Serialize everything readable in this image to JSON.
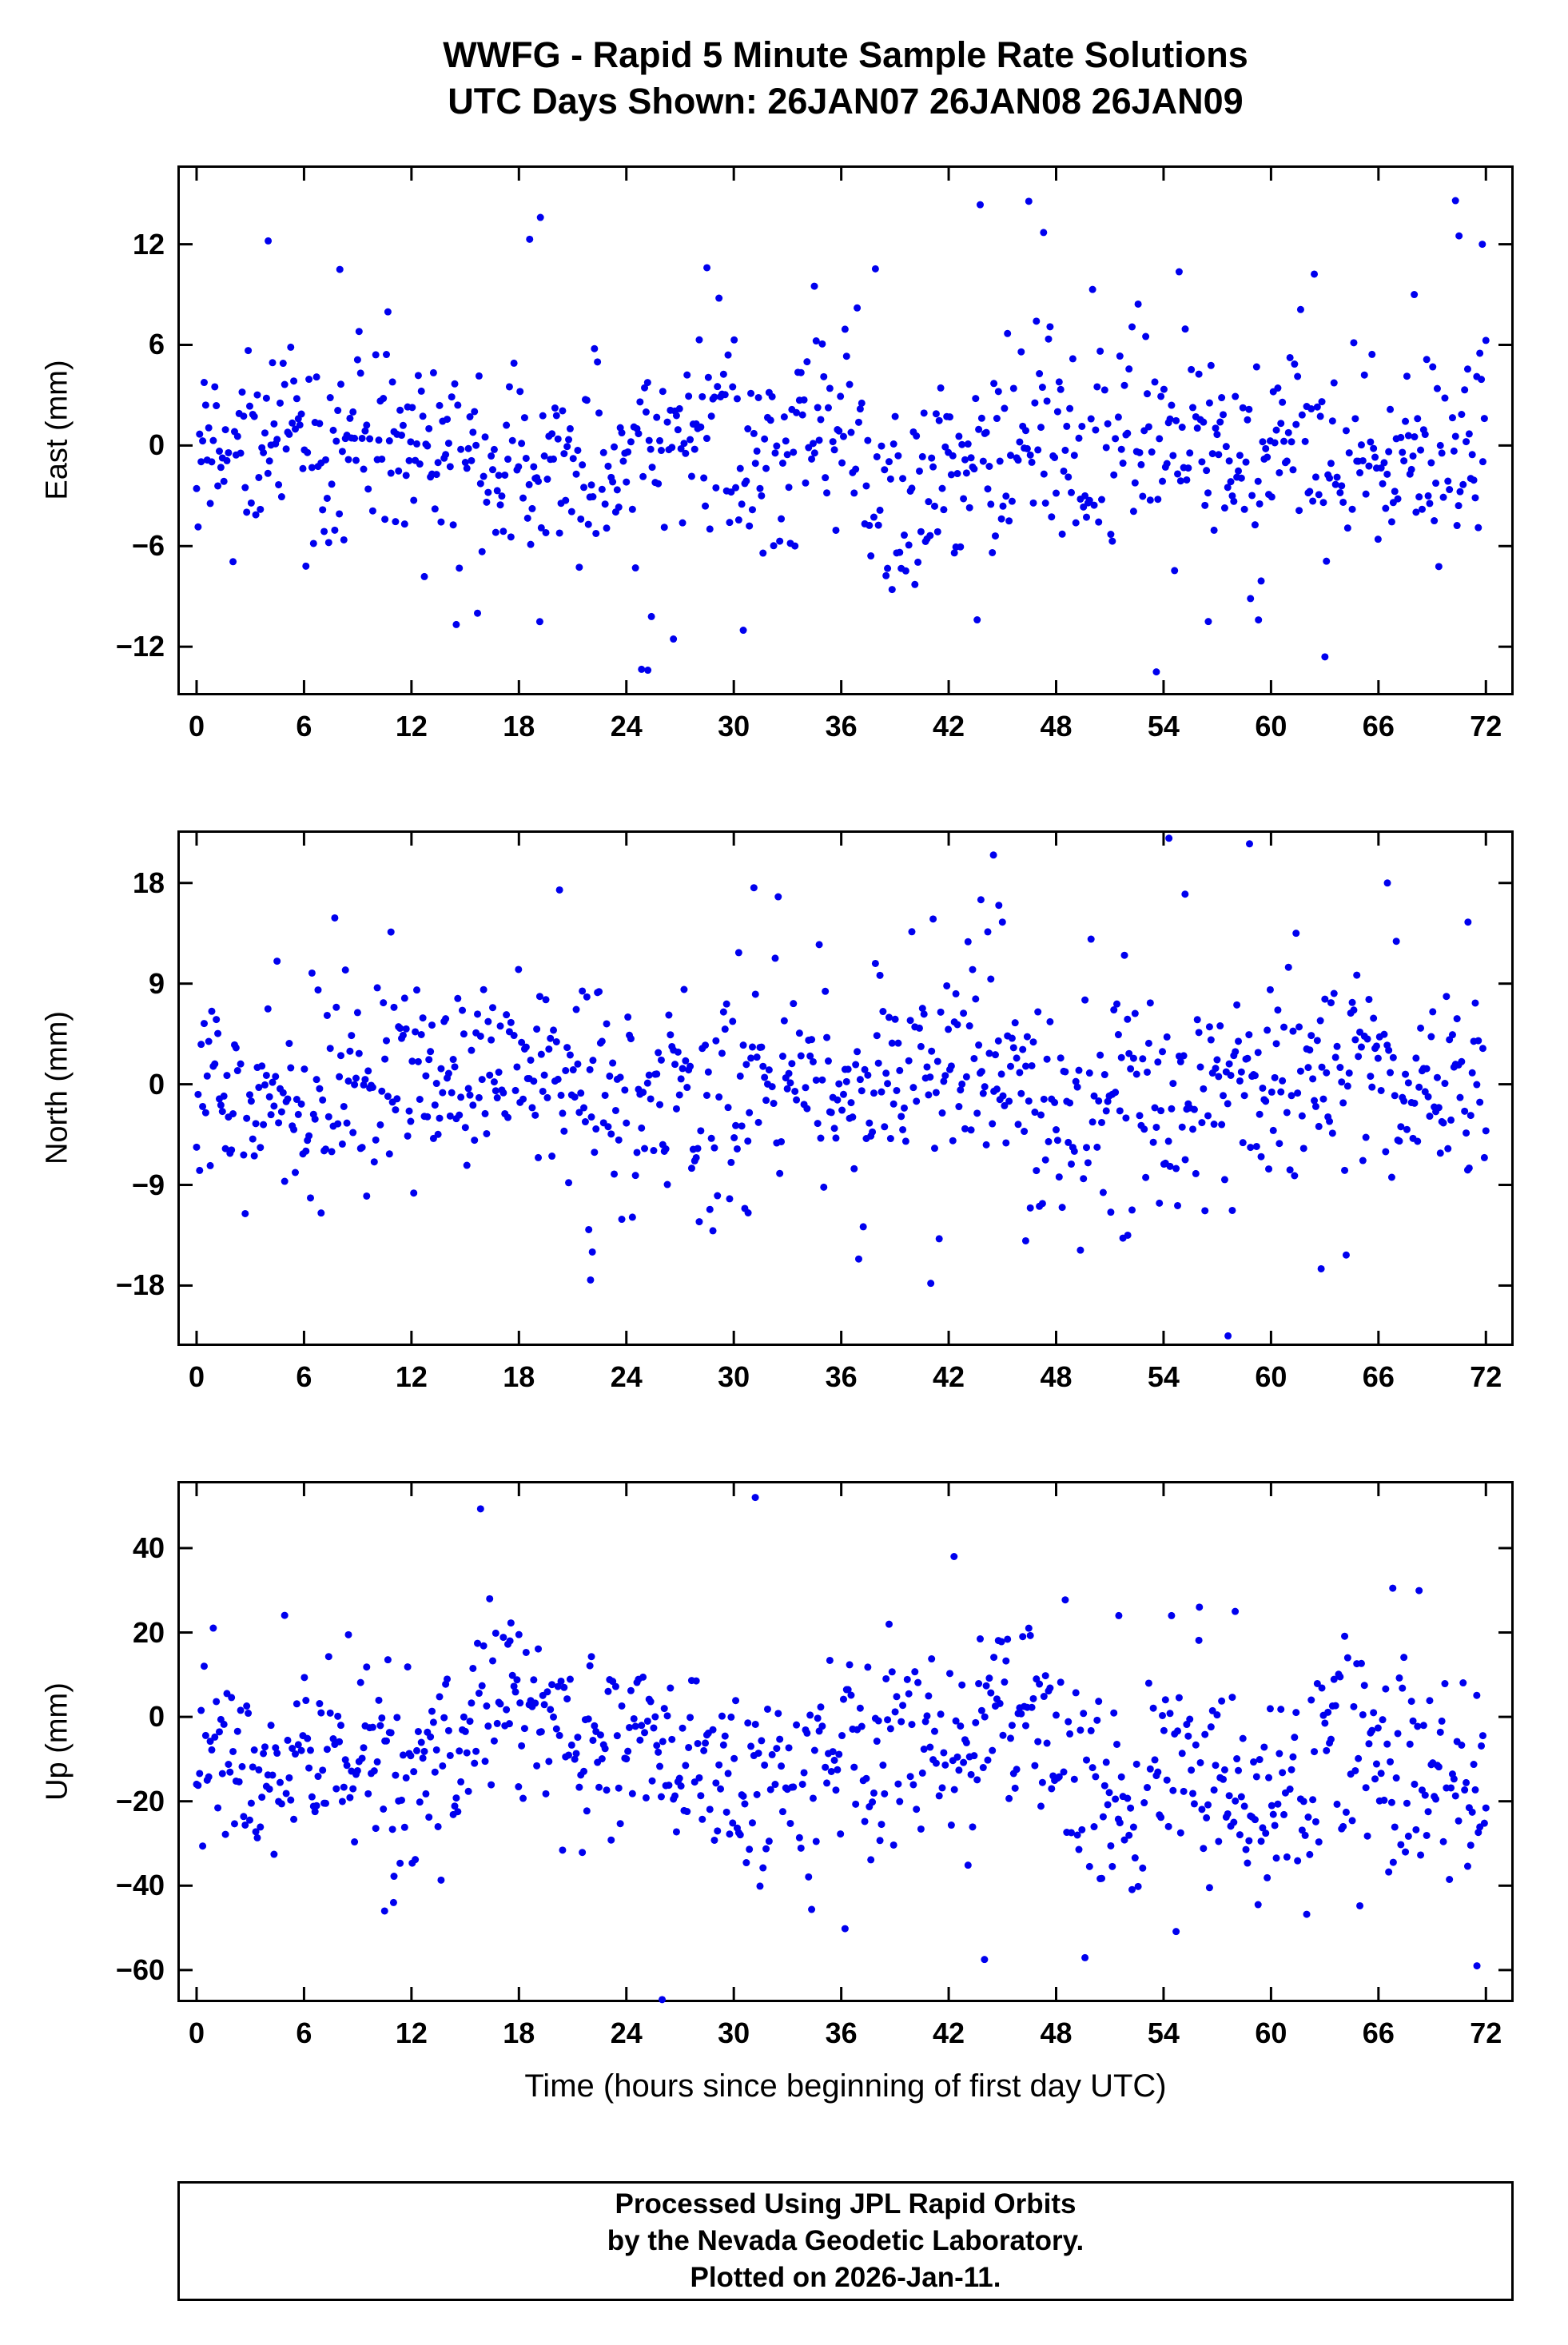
{
  "title": {
    "line1": "WWFG - Rapid 5 Minute Sample Rate Solutions",
    "line2": "UTC Days Shown:  26JAN07 26JAN08 26JAN09"
  },
  "xlabel": "Time (hours since beginning of first day UTC)",
  "footer": {
    "line1": "Processed Using JPL Rapid Orbits",
    "line2": "by the Nevada Geodetic Laboratory.",
    "line3": "Plotted on 2026-Jan-11."
  },
  "style": {
    "dot_color": "#0000ee",
    "dot_radius": 4.5,
    "frame_color": "#000000",
    "frame_width": 3,
    "tick_length": 16
  },
  "chart_data": [
    {
      "type": "scatter",
      "id": "east",
      "ylabel": "East (mm)",
      "xlabel": "Time (hours since beginning of first day UTC)",
      "x_ticks": [
        0,
        6,
        12,
        18,
        24,
        30,
        36,
        42,
        48,
        54,
        60,
        66,
        72
      ],
      "y_ticks": [
        -12,
        -6,
        0,
        6,
        12
      ],
      "x_range": [
        -1.07,
        73.55
      ],
      "y_range": [
        -14.9,
        16.7
      ],
      "grid": false,
      "legend": false,
      "series_stats": {
        "n": 850,
        "seed": 7,
        "mean": -0.3,
        "std": 3.1,
        "waves": [
          {
            "period": 24,
            "amp": 0.9
          },
          {
            "period": 8.6,
            "amp": 0.7
          }
        ],
        "trend_per_hour": 0,
        "trend_center": 36,
        "outlier_rate": 0.02,
        "outlier_scale": 2.6,
        "gap_rate": 0.04
      },
      "highlight_points": [
        [
          70.3,
          14.6
        ],
        [
          19.2,
          13.6
        ],
        [
          4.0,
          12.2
        ],
        [
          18.6,
          12.3
        ],
        [
          25.2,
          -13.4
        ],
        [
          70.5,
          12.5
        ],
        [
          47.3,
          12.7
        ],
        [
          8.0,
          10.5
        ],
        [
          28.5,
          10.6
        ],
        [
          34.5,
          9.5
        ],
        [
          56.5,
          -10.5
        ],
        [
          59.3,
          -10.4
        ],
        [
          71.8,
          12.0
        ],
        [
          68.0,
          9.0
        ],
        [
          25.4,
          -10.2
        ]
      ]
    },
    {
      "type": "scatter",
      "id": "north",
      "ylabel": "North (mm)",
      "xlabel": "Time (hours since beginning of first day UTC)",
      "x_ticks": [
        0,
        6,
        12,
        18,
        24,
        30,
        36,
        42,
        48,
        54,
        60,
        66,
        72
      ],
      "y_ticks": [
        -18,
        -9,
        0,
        9,
        18
      ],
      "x_range": [
        -1.07,
        73.55
      ],
      "y_range": [
        -23.4,
        22.7
      ],
      "grid": false,
      "legend": false,
      "series_stats": {
        "n": 850,
        "seed": 13,
        "mean": 0.3,
        "std": 4.6,
        "waves": [
          {
            "period": 24,
            "amp": 1.4
          },
          {
            "period": 11,
            "amp": 1.0
          }
        ],
        "trend_per_hour": 0,
        "trend_center": 36,
        "outlier_rate": 0.03,
        "outlier_scale": 2.8,
        "gap_rate": 0.04
      },
      "highlight_points": [
        [
          54.3,
          22.0
        ],
        [
          57.6,
          -22.5
        ],
        [
          44.5,
          20.5
        ],
        [
          44.8,
          16.0
        ],
        [
          45.0,
          14.5
        ],
        [
          22.0,
          -17.5
        ],
        [
          22.1,
          -15.0
        ],
        [
          21.9,
          -13.0
        ],
        [
          62.8,
          -16.5
        ],
        [
          58.8,
          21.5
        ],
        [
          66.5,
          18.0
        ],
        [
          71.0,
          14.5
        ],
        [
          46.3,
          -14.0
        ],
        [
          52.0,
          -13.5
        ],
        [
          30.8,
          -11.5
        ],
        [
          41.0,
          -17.8
        ],
        [
          55.2,
          17.0
        ],
        [
          43.8,
          16.5
        ]
      ]
    },
    {
      "type": "scatter",
      "id": "up",
      "ylabel": "Up (mm)",
      "xlabel": "Time (hours since beginning of first day UTC)",
      "x_ticks": [
        0,
        6,
        12,
        18,
        24,
        30,
        36,
        42,
        48,
        54,
        60,
        66,
        72
      ],
      "y_ticks": [
        -60,
        -40,
        -20,
        0,
        20,
        40
      ],
      "x_range": [
        -1.07,
        73.55
      ],
      "y_range": [
        -67.6,
        55.9
      ],
      "grid": false,
      "legend": false,
      "series_stats": {
        "n": 850,
        "seed": 21,
        "mean": -8,
        "std": 12.5,
        "waves": [
          {
            "period": 24,
            "amp": 6
          },
          {
            "period": 9.5,
            "amp": 4
          }
        ],
        "trend_per_hour": -0.18,
        "trend_center": 30,
        "outlier_rate": 0.02,
        "outlier_scale": 2.2,
        "gap_rate": 0.04
      },
      "highlight_points": [
        [
          31.2,
          52.0
        ],
        [
          42.3,
          38.0
        ],
        [
          44.0,
          -57.5
        ],
        [
          26.0,
          -67.0
        ],
        [
          71.5,
          -59.0
        ],
        [
          66.8,
          30.5
        ],
        [
          10.5,
          -46.0
        ],
        [
          11.0,
          -44.0
        ],
        [
          56.0,
          26.0
        ],
        [
          58.0,
          25.0
        ],
        [
          18.0,
          19.5
        ],
        [
          17.5,
          18.0
        ],
        [
          51.5,
          24.0
        ]
      ]
    }
  ]
}
